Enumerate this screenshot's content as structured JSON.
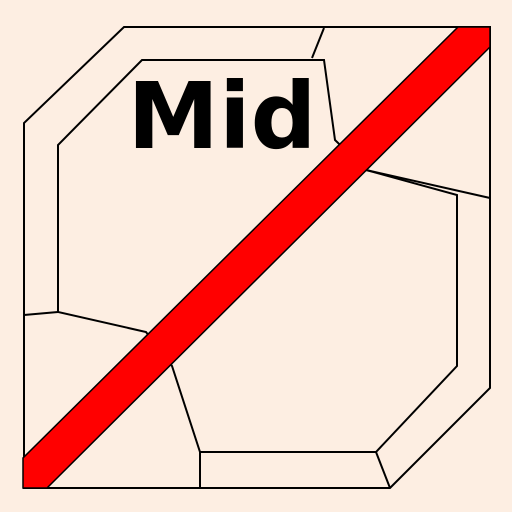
{
  "icon": {
    "semantic": "no-mid-icon",
    "label": "Mid",
    "colors": {
      "background": "#FDEEE2",
      "outline": "#000000",
      "slash": "#FF0000",
      "text": "#000000"
    }
  }
}
